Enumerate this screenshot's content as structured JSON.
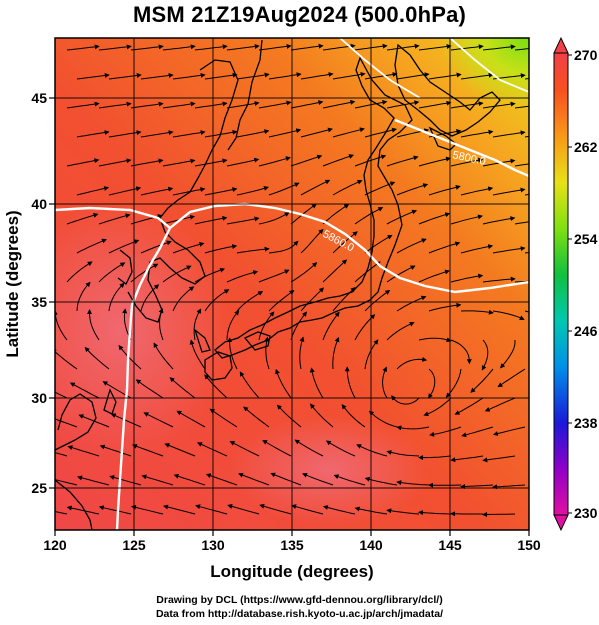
{
  "title": "MSM 21Z19Aug2024 (500.0hPa)",
  "map": {
    "xlabel": "Longitude (degrees)",
    "ylabel": "Latitude  (degrees)",
    "lon_range": [
      120,
      150
    ],
    "lat_range": [
      22.7,
      48
    ],
    "lon_ticks": [
      "120",
      "125",
      "130",
      "135",
      "140",
      "145",
      "150"
    ],
    "lat_ticks": [
      "25",
      "30",
      "35",
      "40",
      "45"
    ],
    "grid": true
  },
  "colorbar": {
    "min": 230,
    "max": 270,
    "tick_labels": [
      "270",
      "262",
      "254",
      "246",
      "238",
      "230"
    ],
    "colors": [
      "#d80098",
      "#7000c8",
      "#1428d8",
      "#00a0e8",
      "#00c8a0",
      "#10c830",
      "#88e010",
      "#e8e010",
      "#f89818",
      "#f85818",
      "#f04040",
      "#f06068"
    ]
  },
  "contours": [
    {
      "label": "5800.0"
    },
    {
      "label": "5860.0"
    }
  ],
  "credits": {
    "line1": "Drawing by DCL (https://www.gfd-dennou.org/library/dcl/)",
    "line2": "Data from http://database.rish.kyoto-u.ac.jp/arch/jmadata/"
  }
}
